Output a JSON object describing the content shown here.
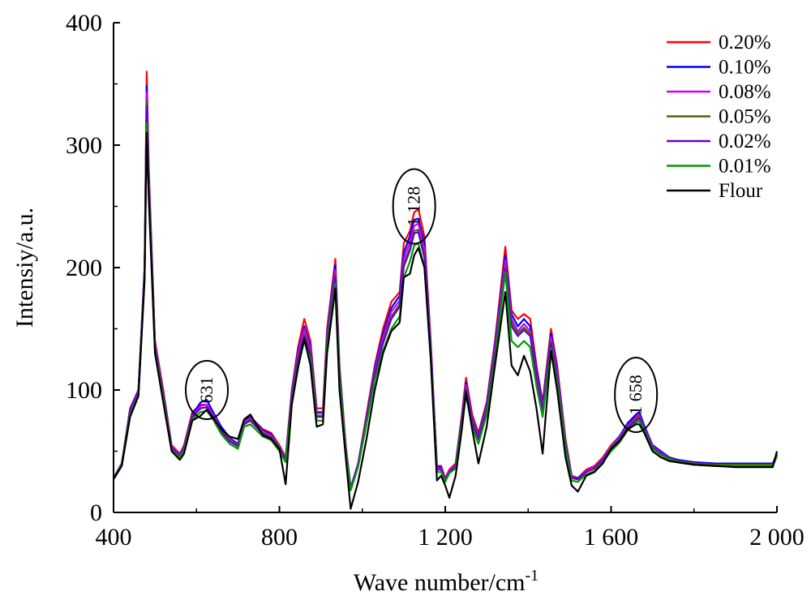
{
  "chart_data": {
    "type": "line",
    "xlabel": "Wave number/cm",
    "xlabel_sup": "-1",
    "ylabel": "Intensiy/a.u.",
    "xlim": [
      400,
      2000
    ],
    "ylim": [
      0,
      400
    ],
    "x_ticks": [
      {
        "value": 400,
        "label": "400"
      },
      {
        "value": 800,
        "label": "800"
      },
      {
        "value": 1200,
        "label": "1 200"
      },
      {
        "value": 1600,
        "label": "1 600"
      },
      {
        "value": 2000,
        "label": "2 000"
      }
    ],
    "y_ticks": [
      {
        "value": 0,
        "label": "0"
      },
      {
        "value": 100,
        "label": "100"
      },
      {
        "value": 200,
        "label": "200"
      },
      {
        "value": 300,
        "label": "300"
      },
      {
        "value": 400,
        "label": "400"
      }
    ],
    "grid": false,
    "legend_position": "top-right",
    "annotations": [
      {
        "label": "631",
        "x": 625,
        "y": 100
      },
      {
        "label": "1 128",
        "x": 1125,
        "y": 250
      },
      {
        "label": "1 658",
        "x": 1660,
        "y": 96
      }
    ],
    "x": [
      400,
      420,
      440,
      460,
      475,
      480,
      485,
      500,
      520,
      540,
      560,
      570,
      590,
      610,
      625,
      640,
      660,
      680,
      700,
      715,
      730,
      760,
      780,
      800,
      815,
      830,
      845,
      860,
      875,
      890,
      905,
      915,
      935,
      945,
      960,
      972,
      990,
      1010,
      1030,
      1050,
      1070,
      1090,
      1100,
      1115,
      1125,
      1135,
      1150,
      1165,
      1180,
      1190,
      1200,
      1210,
      1225,
      1240,
      1250,
      1265,
      1280,
      1300,
      1320,
      1345,
      1360,
      1375,
      1390,
      1405,
      1420,
      1435,
      1455,
      1470,
      1490,
      1505,
      1520,
      1540,
      1560,
      1580,
      1600,
      1620,
      1640,
      1660,
      1668,
      1680,
      1700,
      1720,
      1740,
      1760,
      1780,
      1800,
      1850,
      1900,
      1950,
      1990,
      2000
    ],
    "series": [
      {
        "name": "0.20%",
        "color": "#ff0000",
        "values": [
          28,
          40,
          85,
          100,
          200,
          360,
          280,
          140,
          100,
          55,
          48,
          55,
          82,
          88,
          88,
          80,
          68,
          60,
          55,
          75,
          78,
          68,
          65,
          55,
          45,
          100,
          135,
          158,
          140,
          85,
          85,
          150,
          207,
          120,
          55,
          20,
          40,
          80,
          120,
          150,
          172,
          180,
          220,
          230,
          245,
          248,
          225,
          140,
          38,
          38,
          28,
          35,
          40,
          80,
          110,
          80,
          65,
          90,
          140,
          217,
          165,
          158,
          162,
          158,
          120,
          90,
          150,
          120,
          60,
          30,
          28,
          35,
          38,
          45,
          55,
          62,
          72,
          78,
          80,
          70,
          55,
          50,
          45,
          43,
          42,
          41,
          40,
          40,
          40,
          40,
          48
        ]
      },
      {
        "name": "0.10%",
        "color": "#0000ff",
        "values": [
          28,
          40,
          84,
          100,
          200,
          348,
          275,
          138,
          98,
          54,
          47,
          54,
          80,
          90,
          92,
          82,
          70,
          61,
          56,
          75,
          78,
          67,
          64,
          54,
          44,
          98,
          132,
          152,
          136,
          82,
          82,
          147,
          202,
          118,
          54,
          20,
          40,
          78,
          118,
          146,
          167,
          177,
          212,
          226,
          239,
          240,
          219,
          138,
          37,
          37,
          27,
          34,
          39,
          78,
          106,
          78,
          63,
          88,
          137,
          210,
          162,
          152,
          158,
          152,
          116,
          88,
          146,
          117,
          58,
          29,
          28,
          34,
          37,
          44,
          54,
          62,
          73,
          80,
          82,
          71,
          55,
          50,
          45,
          43,
          42,
          41,
          40,
          40,
          40,
          40,
          48
        ]
      },
      {
        "name": "0.08%",
        "color": "#cc00ff",
        "values": [
          28,
          40,
          83,
          99,
          198,
          343,
          272,
          137,
          97,
          54,
          47,
          54,
          79,
          87,
          88,
          80,
          68,
          60,
          55,
          74,
          77,
          66,
          63,
          54,
          44,
          96,
          130,
          150,
          134,
          81,
          81,
          145,
          198,
          116,
          53,
          20,
          40,
          77,
          116,
          143,
          164,
          173,
          207,
          221,
          234,
          236,
          215,
          136,
          36,
          36,
          27,
          34,
          39,
          77,
          104,
          77,
          62,
          86,
          134,
          206,
          158,
          148,
          154,
          148,
          113,
          86,
          143,
          115,
          57,
          29,
          27,
          34,
          37,
          44,
          54,
          61,
          71,
          77,
          79,
          69,
          54,
          49,
          44,
          42,
          41,
          40,
          39,
          39,
          39,
          39,
          47
        ]
      },
      {
        "name": "0.05%",
        "color": "#4d6600",
        "values": [
          28,
          40,
          82,
          98,
          196,
          336,
          268,
          135,
          96,
          53,
          46,
          53,
          78,
          85,
          86,
          78,
          67,
          59,
          55,
          73,
          76,
          65,
          62,
          53,
          43,
          94,
          127,
          146,
          131,
          79,
          79,
          142,
          194,
          114,
          52,
          19,
          39,
          76,
          114,
          140,
          160,
          170,
          203,
          216,
          230,
          231,
          210,
          133,
          35,
          35,
          26,
          33,
          38,
          76,
          102,
          75,
          61,
          84,
          131,
          201,
          155,
          146,
          151,
          146,
          111,
          84,
          140,
          112,
          56,
          28,
          27,
          33,
          36,
          43,
          53,
          60,
          70,
          76,
          78,
          68,
          53,
          48,
          44,
          42,
          41,
          40,
          39,
          39,
          39,
          39,
          47
        ]
      },
      {
        "name": "0.02%",
        "color": "#6600cc",
        "values": [
          28,
          40,
          82,
          98,
          196,
          332,
          266,
          134,
          95,
          53,
          46,
          53,
          78,
          85,
          86,
          78,
          66,
          58,
          54,
          72,
          75,
          64,
          61,
          52,
          43,
          93,
          125,
          144,
          129,
          78,
          78,
          140,
          192,
          113,
          52,
          19,
          39,
          75,
          113,
          138,
          158,
          168,
          201,
          214,
          228,
          229,
          208,
          132,
          35,
          35,
          26,
          33,
          38,
          75,
          100,
          74,
          60,
          83,
          129,
          199,
          152,
          144,
          149,
          144,
          110,
          83,
          138,
          110,
          55,
          28,
          27,
          33,
          36,
          43,
          52,
          59,
          69,
          75,
          77,
          67,
          53,
          48,
          43,
          41,
          40,
          39,
          38,
          38,
          38,
          38,
          46
        ]
      },
      {
        "name": "0.01%",
        "color": "#009900",
        "values": [
          27,
          39,
          80,
          96,
          192,
          318,
          260,
          131,
          93,
          51,
          45,
          51,
          76,
          82,
          83,
          76,
          64,
          56,
          52,
          70,
          72,
          62,
          59,
          50,
          41,
          90,
          120,
          140,
          125,
          75,
          75,
          136,
          187,
          110,
          50,
          18,
          37,
          72,
          108,
          132,
          150,
          160,
          192,
          205,
          218,
          220,
          200,
          128,
          33,
          33,
          25,
          32,
          36,
          72,
          96,
          70,
          56,
          80,
          125,
          196,
          140,
          135,
          140,
          135,
          103,
          78,
          134,
          106,
          52,
          26,
          25,
          31,
          34,
          41,
          50,
          57,
          67,
          73,
          75,
          66,
          52,
          47,
          43,
          41,
          40,
          39,
          38,
          38,
          38,
          38,
          46
        ]
      },
      {
        "name": "Flour",
        "color": "#000000",
        "values": [
          27,
          38,
          78,
          95,
          190,
          310,
          255,
          130,
          90,
          50,
          43,
          48,
          75,
          79,
          84,
          77,
          68,
          62,
          60,
          76,
          80,
          63,
          60,
          52,
          23,
          88,
          118,
          142,
          120,
          70,
          72,
          130,
          183,
          100,
          45,
          3,
          25,
          60,
          100,
          130,
          148,
          155,
          192,
          195,
          210,
          216,
          200,
          125,
          26,
          30,
          22,
          12,
          30,
          68,
          98,
          68,
          40,
          70,
          120,
          180,
          120,
          112,
          128,
          115,
          85,
          48,
          132,
          100,
          45,
          22,
          17,
          30,
          33,
          40,
          52,
          58,
          68,
          72,
          72,
          65,
          50,
          45,
          42,
          41,
          40,
          39,
          38,
          37,
          37,
          37,
          50
        ]
      }
    ]
  }
}
